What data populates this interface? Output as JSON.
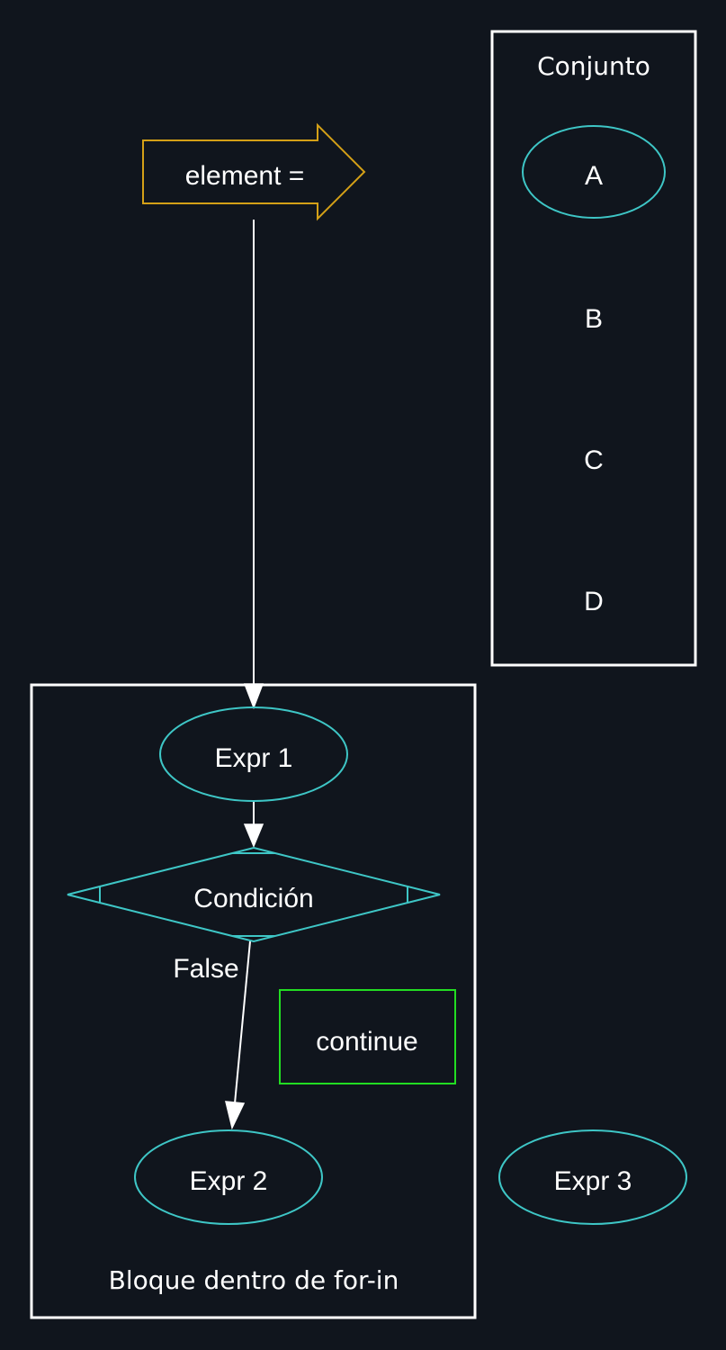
{
  "diagram": {
    "clusters": {
      "set": {
        "label": "Conjunto"
      },
      "block": {
        "label": "Bloque dentro de for-in"
      }
    },
    "nodes": {
      "element": {
        "label": "element ="
      },
      "set_a": {
        "label": "A"
      },
      "set_b": {
        "label": "B"
      },
      "set_c": {
        "label": "C"
      },
      "set_d": {
        "label": "D"
      },
      "expr1": {
        "label": "Expr 1"
      },
      "condition": {
        "label": "Condición"
      },
      "continue": {
        "label": "continue"
      },
      "expr2": {
        "label": "Expr 2"
      },
      "expr3": {
        "label": "Expr 3"
      }
    },
    "edges": {
      "element_to_expr1": {
        "label": ""
      },
      "expr1_to_condition": {
        "label": ""
      },
      "condition_to_expr2": {
        "label": "False"
      }
    },
    "colors": {
      "background": "#10151d",
      "ellipse_stroke": "#3ec6c6",
      "arrow_node_stroke": "#d4a017",
      "continue_stroke": "#22dd22",
      "edge": "#ffffff",
      "text": "#ffffff"
    }
  }
}
